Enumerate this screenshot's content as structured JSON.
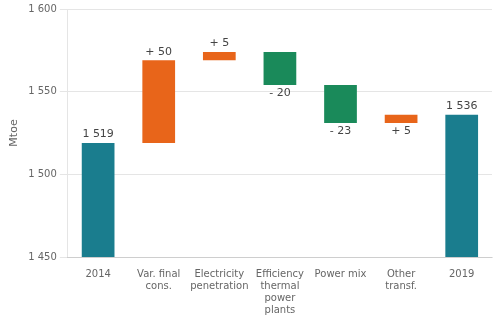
{
  "chart_data": {
    "type": "waterfall",
    "categories": [
      "2014",
      "Var. final\ncons.",
      "Electricity\npenetration",
      "Efficiency\nthermal\npower\nplants",
      "Power mix",
      "Other\ntransf.",
      "2019"
    ],
    "values": [
      [
        1450,
        1519
      ],
      [
        1519,
        1569
      ],
      [
        1569,
        1574
      ],
      [
        1554,
        1574
      ],
      [
        1531,
        1554
      ],
      [
        1531,
        1536
      ],
      [
        1450,
        1536
      ]
    ],
    "colors": [
      "#1a7d8e",
      "#e8651a",
      "#e8651a",
      "#1a8a5a",
      "#1a8a5a",
      "#e8651a",
      "#1a7d8e"
    ],
    "annotations": [
      {
        "text": "1 519",
        "y": 1519
      },
      {
        "text": "+ 50",
        "y": 1569
      },
      {
        "text": "+ 5",
        "y": 1574
      },
      {
        "text": "- 20",
        "y": 1554
      },
      {
        "text": "- 23",
        "y": 1531
      },
      {
        "text": "+ 5",
        "y": 1531
      },
      {
        "text": "1 536",
        "y": 1536
      }
    ],
    "y_label": "Mtoe",
    "ylim": [
      1450,
      1600
    ],
    "yticks": [
      {
        "value": 1450,
        "label": "1 450"
      },
      {
        "value": 1500,
        "label": "1 500"
      },
      {
        "value": 1550,
        "label": "1 550"
      },
      {
        "value": 1600,
        "label": "1 600"
      }
    ],
    "grid": true
  }
}
